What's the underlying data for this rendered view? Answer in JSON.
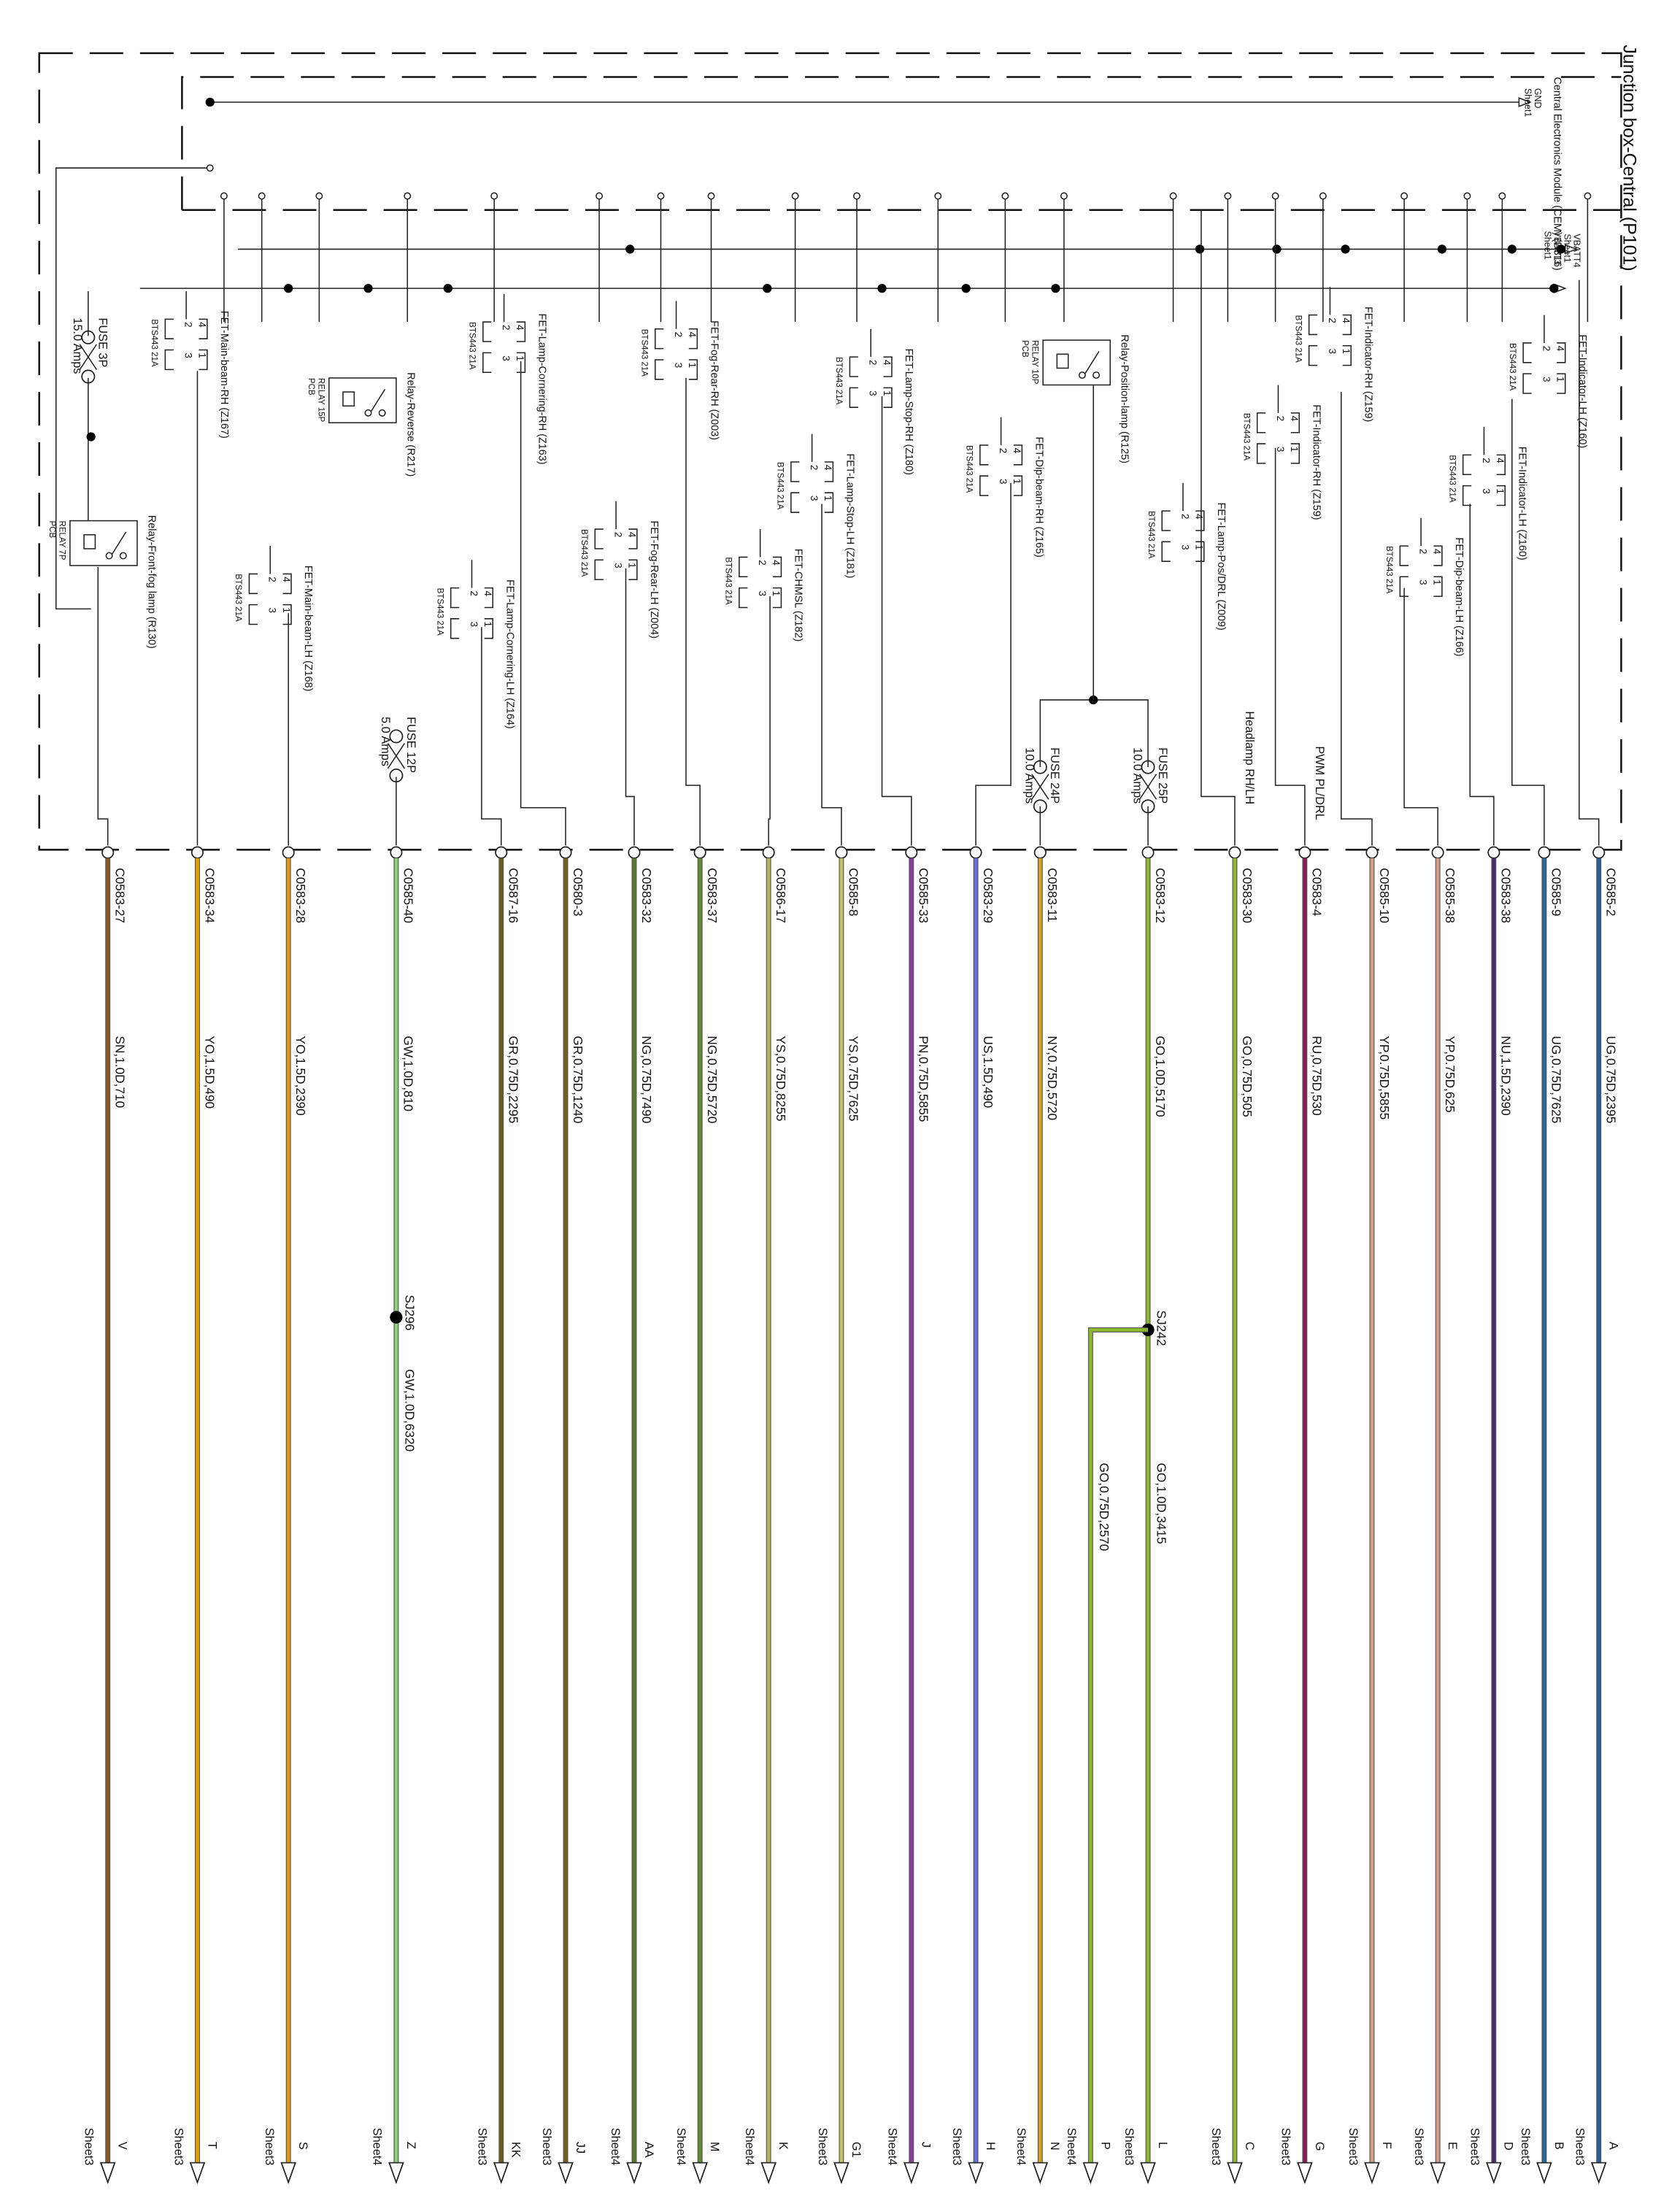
{
  "title": "Junction box-Central (P101)",
  "module": "Central Electronics Module (CEM) (D316)",
  "rails": [
    {
      "name": "GND",
      "sheet": "Sheet1"
    },
    {
      "name": "VBATT3",
      "sheet": "Sheet1"
    },
    {
      "name": "VBATT4",
      "sheet": "Sheet1"
    }
  ],
  "pins": [
    "1",
    "2",
    "3",
    "4"
  ],
  "components": [
    {
      "label": "FET-Main-beam-RH (Z167)",
      "part": "BTS443 21A"
    },
    {
      "label": "FET-Main-beam-LH (Z168)",
      "part": "BTS443 21A"
    },
    {
      "label": "FET-Lamp-Cornering-LH (Z164)",
      "part": "BTS443 21A"
    },
    {
      "label": "FET-Lamp-Cornering-RH (Z163)",
      "part": "BTS443 21A"
    },
    {
      "label": "FET-Fog-Rear-LH (Z004)",
      "part": "BTS443 21A"
    },
    {
      "label": "FET-Fog-Rear-RH (Z003)",
      "part": "BTS443 21A"
    },
    {
      "label": "FET-CHMSL (Z182)",
      "part": "BTS443 21A"
    },
    {
      "label": "FET-Lamp-Stop-LH (Z181)",
      "part": "BTS443 21A"
    },
    {
      "label": "FET-Lamp-Stop-RH (Z180)",
      "part": "BTS443 21A"
    },
    {
      "label": "FET-Dip-beam-RH (Z165)",
      "part": "BTS443 21A"
    },
    {
      "label": "FET-Lamp-Pos/DRL (Z009)",
      "part": "BTS443 21A"
    },
    {
      "label": "FET-Indicator-RH (Z159)",
      "part": "BTS443 21A"
    },
    {
      "label": "FET-Indicator-RH (Z159)",
      "part": "BTS443 21A"
    },
    {
      "label": "FET-Dip-beam-LH (Z166)",
      "part": "BTS443 21A"
    },
    {
      "label": "FET-Indicator-LH (Z160)",
      "part": "BTS443 21A"
    },
    {
      "label": "FET-Indicator-LH (Z160)",
      "part": "BTS443 21A"
    }
  ],
  "relays": [
    {
      "label": "Relay-Front-fog lamp (R130)",
      "part": "RELAY 7P",
      "board": "PCB"
    },
    {
      "label": "Relay-Reverse (R217)",
      "part": "RELAY 15P",
      "board": "PCB"
    },
    {
      "label": "Relay-Position-lamp (R125)",
      "part": "RELAY 10P",
      "board": "PCB"
    }
  ],
  "fuses": [
    {
      "name": "FUSE 3P",
      "rating": "15.0 Amps"
    },
    {
      "name": "FUSE 12P",
      "rating": "5.0 Amps"
    },
    {
      "name": "FUSE 24P",
      "rating": "10.0 Amps"
    },
    {
      "name": "FUSE 25P",
      "rating": "10.0 Amps"
    }
  ],
  "notes": [
    "Headlamp RH/LH",
    "PWM PL/DRL"
  ],
  "wires": [
    {
      "connector": "C0583-27",
      "code": "SN,1.0D,710",
      "dest": "V",
      "sheet": "Sheet3",
      "color": "#8b5a2b"
    },
    {
      "connector": "C0583-34",
      "code": "YO,1.5D,490",
      "dest": "T",
      "sheet": "Sheet3",
      "color": "#e8a000"
    },
    {
      "connector": "C0583-28",
      "code": "YO,1.5D,2390",
      "dest": "S",
      "sheet": "Sheet3",
      "color": "#e09a10"
    },
    {
      "connector": "C0585-40",
      "code": "GW,1.0D,810",
      "dest": "Z",
      "sheet": "Sheet4",
      "color": "#8fd07a"
    },
    {
      "connector": "C0587-16",
      "code": "GR,0.75D,2295",
      "dest": "KK",
      "sheet": "Sheet3",
      "color": "#6b5a1e"
    },
    {
      "connector": "C0580-3",
      "code": "GR,0.75D,1240",
      "dest": "JJ",
      "sheet": "Sheet3",
      "color": "#7a5a1e"
    },
    {
      "connector": "C0583-32",
      "code": "NG,0.75D,7490",
      "dest": "AA",
      "sheet": "Sheet4",
      "color": "#5a7a2a"
    },
    {
      "connector": "C0583-37",
      "code": "NG,0.75D,5720",
      "dest": "M",
      "sheet": "Sheet4",
      "color": "#5e8c2e"
    },
    {
      "connector": "C0586-17",
      "code": "YS,0.75D,8255",
      "dest": "K",
      "sheet": "Sheet4",
      "color": "#b5b55a"
    },
    {
      "connector": "C0585-8",
      "code": "YS,0.75D,7625",
      "dest": "G1",
      "sheet": "Sheet3",
      "color": "#c2c25e"
    },
    {
      "connector": "C0585-33",
      "code": "PN,0.75D,5855",
      "dest": "J",
      "sheet": "Sheet4",
      "color": "#8a3ca0"
    },
    {
      "connector": "C0583-29",
      "code": "US,1.5D,490",
      "dest": "H",
      "sheet": "Sheet3",
      "color": "#6a6adc"
    },
    {
      "connector": "C0583-11",
      "code": "NY,0.75D,5720",
      "dest": "N",
      "sheet": "Sheet4",
      "color": "#d4a020"
    },
    {
      "connector": "C0583-12",
      "code": "GO,1.0D,5170",
      "dest": "L",
      "sheet": "Sheet3",
      "color": "#8db830"
    },
    {
      "connector": "C0583-30",
      "code": "GO,0.75D,505",
      "dest": "C",
      "sheet": "Sheet3",
      "color": "#8db830"
    },
    {
      "connector": "C0583-4",
      "code": "RU,0.75D,530",
      "dest": "G",
      "sheet": "Sheet3",
      "color": "#8b1a5a"
    },
    {
      "connector": "C0585-10",
      "code": "YP,0.75D,5855",
      "dest": "F",
      "sheet": "Sheet3",
      "color": "#d4a080"
    },
    {
      "connector": "C0585-38",
      "code": "YP,0.75D,625",
      "dest": "E",
      "sheet": "Sheet3",
      "color": "#d49a88"
    },
    {
      "connector": "C0583-38",
      "code": "NU,1.5D,2390",
      "dest": "D",
      "sheet": "Sheet3",
      "color": "#4a2a6a"
    },
    {
      "connector": "C0585-9",
      "code": "UG,0.75D,7625",
      "dest": "B",
      "sheet": "Sheet3",
      "color": "#2a6a9a"
    },
    {
      "connector": "C0585-2",
      "code": "UG,0.75D,2395",
      "dest": "A",
      "sheet": "Sheet3",
      "color": "#2a5a9a"
    }
  ],
  "splices": [
    {
      "name": "SJ296",
      "code": "GW,1.0D,6320"
    },
    {
      "name": "SJ242",
      "code": "GO,1.0D,3415"
    }
  ],
  "branch": {
    "code": "GO,0.75D,2570",
    "dest": "P",
    "sheet": "Sheet4",
    "color": "#8db830"
  }
}
